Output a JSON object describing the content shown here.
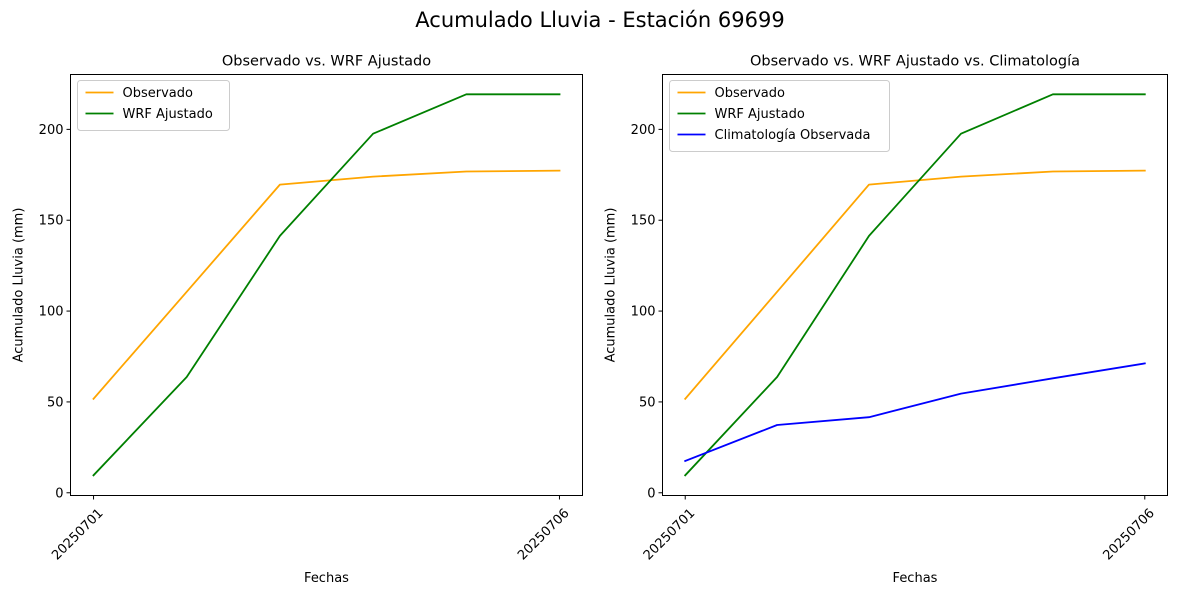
{
  "figure": {
    "title": "Acumulado Lluvia - Estación 69699"
  },
  "colors": {
    "observado": "#ffa500",
    "wrf": "#008000",
    "climatologia": "#0000ff"
  },
  "chart_data": [
    {
      "type": "line",
      "title": "Observado vs. WRF Ajustado",
      "xlabel": "Fechas",
      "ylabel": "Acumulado Lluvia (mm)",
      "x": [
        "20250701",
        "20250702",
        "20250703",
        "20250704",
        "20250705",
        "20250706"
      ],
      "x_tick_labels": [
        "20250701",
        "20250706"
      ],
      "yticks": [
        0,
        50,
        100,
        150,
        200
      ],
      "ylim": [
        -1.5,
        230.2
      ],
      "grid": false,
      "legend_position": "top-left",
      "series": [
        {
          "name": "Observado",
          "color": "#ffa500",
          "values": [
            51.7,
            110.6,
            169.6,
            174.0,
            176.8,
            177.3
          ]
        },
        {
          "name": "WRF Ajustado",
          "color": "#008000",
          "values": [
            9.6,
            63.7,
            141.4,
            197.6,
            219.3,
            219.3
          ]
        }
      ]
    },
    {
      "type": "line",
      "title": "Observado vs. WRF Ajustado vs. Climatología",
      "xlabel": "Fechas",
      "ylabel": "Acumulado Lluvia (mm)",
      "x": [
        "20250701",
        "20250702",
        "20250703",
        "20250704",
        "20250705",
        "20250706"
      ],
      "x_tick_labels": [
        "20250701",
        "20250706"
      ],
      "yticks": [
        0,
        50,
        100,
        150,
        200
      ],
      "ylim": [
        -1.5,
        230.2
      ],
      "grid": false,
      "legend_position": "top-left",
      "series": [
        {
          "name": "Observado",
          "color": "#ffa500",
          "values": [
            51.7,
            110.6,
            169.6,
            174.0,
            176.8,
            177.3
          ]
        },
        {
          "name": "WRF Ajustado",
          "color": "#008000",
          "values": [
            9.6,
            63.7,
            141.4,
            197.6,
            219.3,
            219.3
          ]
        },
        {
          "name": "Climatología Observada",
          "color": "#0000ff",
          "values": [
            17.5,
            37.3,
            41.6,
            54.6,
            63.0,
            71.2
          ]
        }
      ]
    }
  ]
}
